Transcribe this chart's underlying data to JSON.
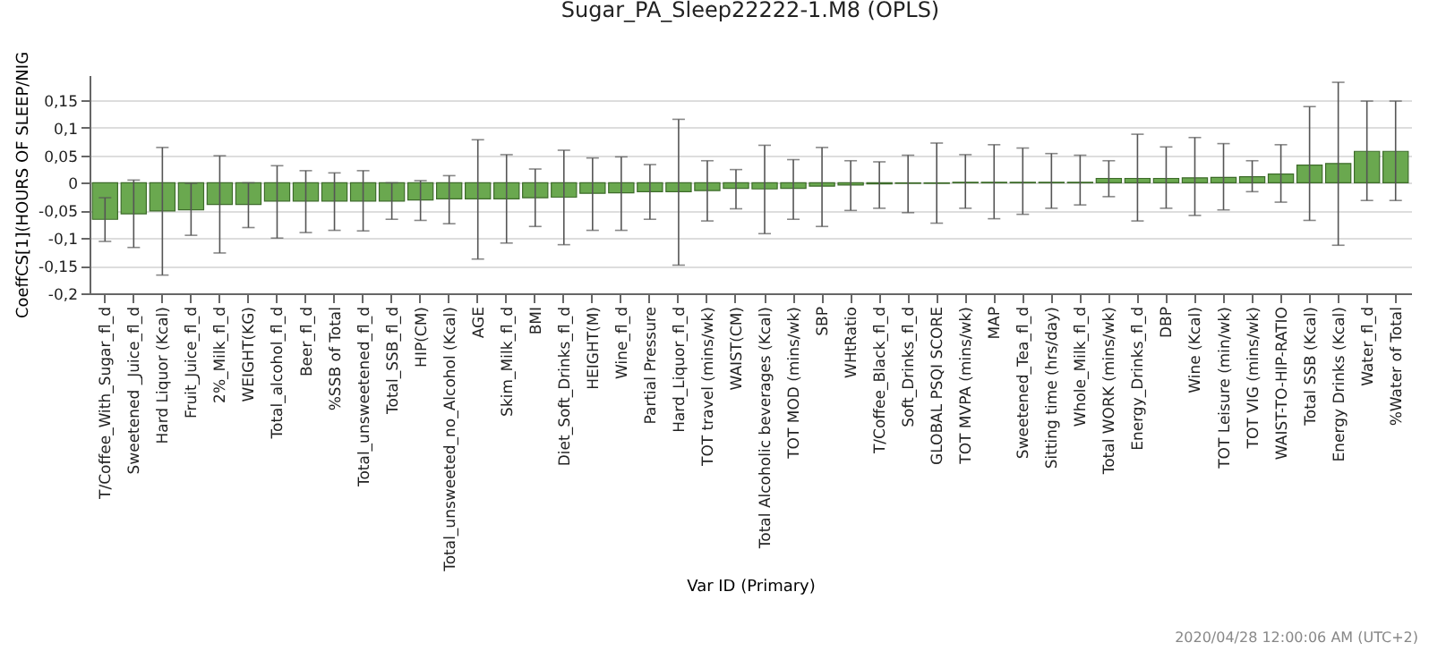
{
  "chart_data": {
    "type": "bar",
    "title": "Sugar_PA_Sleep22222-1.M8 (OPLS)",
    "xlabel": "Var ID (Primary)",
    "ylabel": "CoeffCS[1](HOURS OF SLEEP/NIG",
    "annotations": [
      "2020/04/28 12:00:06 AM (UTC+2)"
    ],
    "categories": [
      "T/Coffee_With_Sugar_fl_d",
      "Sweetened _Juice_fl_d",
      "Hard Liquor (Kcal)",
      "Fruit_Juice_fl_d",
      "2%_Milk_fl_d",
      "WEIGHT(KG)",
      "Total_alcohol_fl_d",
      "Beer_fl_d",
      "%SSB of Total",
      "Total_unsweetened_fl_d",
      "Total_SSB_fl_d",
      "HIP(CM)",
      "Total_unsweeted_no_Alcohol (Kcal)",
      "AGE",
      "Skim_Milk_fl_d",
      "BMI",
      "Diet_Soft_Drinks_fl_d",
      "HEIGHT(M)",
      "Wine_fl_d",
      "Partial Pressure",
      "Hard_Liquor_fl_d",
      "TOT travel (mins/wk)",
      "WAIST(CM)",
      "Total Alcoholic beverages (Kcal)",
      "TOT MOD (mins/wk)",
      "SBP",
      "WHtRatio",
      "T/Coffee_Black_fl_d",
      "Soft_Drinks_fl_d",
      "GLOBAL PSQI SCORE",
      "TOT MVPA (mins/wk)",
      "MAP",
      "Sweetened_Tea_fl_d",
      "Sitting time (hrs/day)",
      "Whole_Milk_fl_d",
      "Total WORK (mins/wk)",
      "Energy_Drinks_fl_d",
      "DBP",
      "Wine (Kcal)",
      "TOT Leisure (min/wk)",
      "TOT VIG (mins/wk)",
      "WAIST-TO-HIP-RATIO",
      "Total SSB (Kcal)",
      "Energy Drinks (Kcal)",
      "Water_fl_d",
      "%Water of Total"
    ],
    "values": [
      -0.066,
      -0.056,
      -0.051,
      -0.049,
      -0.039,
      -0.039,
      -0.033,
      -0.033,
      -0.033,
      -0.033,
      -0.033,
      -0.031,
      -0.029,
      -0.029,
      -0.029,
      -0.027,
      -0.026,
      -0.019,
      -0.018,
      -0.016,
      -0.016,
      -0.014,
      -0.01,
      -0.011,
      -0.01,
      -0.006,
      -0.004,
      -0.002,
      -0.001,
      -0.001,
      0.001,
      0.001,
      0.001,
      0.001,
      0.001,
      0.008,
      0.008,
      0.008,
      0.009,
      0.01,
      0.011,
      0.016,
      0.032,
      0.035,
      0.057,
      0.057
    ],
    "errors": [
      [
        -0.106,
        -0.027
      ],
      [
        -0.117,
        0.005
      ],
      [
        -0.167,
        0.064
      ],
      [
        -0.095,
        -0.001
      ],
      [
        -0.127,
        0.049
      ],
      [
        -0.081,
        0.0
      ],
      [
        -0.1,
        0.031
      ],
      [
        -0.09,
        0.022
      ],
      [
        -0.086,
        0.018
      ],
      [
        -0.087,
        0.022
      ],
      [
        -0.066,
        0.0
      ],
      [
        -0.068,
        0.004
      ],
      [
        -0.074,
        0.013
      ],
      [
        -0.138,
        0.078
      ],
      [
        -0.109,
        0.051
      ],
      [
        -0.079,
        0.025
      ],
      [
        -0.112,
        0.059
      ],
      [
        -0.086,
        0.045
      ],
      [
        -0.086,
        0.047
      ],
      [
        -0.066,
        0.033
      ],
      [
        -0.149,
        0.115
      ],
      [
        -0.069,
        0.04
      ],
      [
        -0.047,
        0.024
      ],
      [
        -0.092,
        0.068
      ],
      [
        -0.066,
        0.042
      ],
      [
        -0.079,
        0.064
      ],
      [
        -0.05,
        0.04
      ],
      [
        -0.046,
        0.038
      ],
      [
        -0.054,
        0.05
      ],
      [
        -0.073,
        0.072
      ],
      [
        -0.046,
        0.051
      ],
      [
        -0.065,
        0.069
      ],
      [
        -0.057,
        0.063
      ],
      [
        -0.046,
        0.053
      ],
      [
        -0.04,
        0.05
      ],
      [
        -0.025,
        0.04
      ],
      [
        -0.069,
        0.088
      ],
      [
        -0.046,
        0.065
      ],
      [
        -0.059,
        0.082
      ],
      [
        -0.049,
        0.071
      ],
      [
        -0.016,
        0.04
      ],
      [
        -0.035,
        0.069
      ],
      [
        -0.068,
        0.138
      ],
      [
        -0.113,
        0.182
      ],
      [
        -0.032,
        0.148
      ],
      [
        -0.032,
        0.148
      ]
    ],
    "color": "#6aa84f",
    "ylim": [
      -0.2,
      0.195
    ],
    "yticks": [
      {
        "value": -0.2,
        "label": "-0,2"
      },
      {
        "value": -0.15,
        "label": "-0,15"
      },
      {
        "value": -0.1,
        "label": "-0,1"
      },
      {
        "value": -0.05,
        "label": "-0,05"
      },
      {
        "value": 0,
        "label": "0"
      },
      {
        "value": 0.05,
        "label": "0,05"
      },
      {
        "value": 0.1,
        "label": "0,1"
      },
      {
        "value": 0.15,
        "label": "0,15"
      }
    ],
    "grid": "y"
  }
}
